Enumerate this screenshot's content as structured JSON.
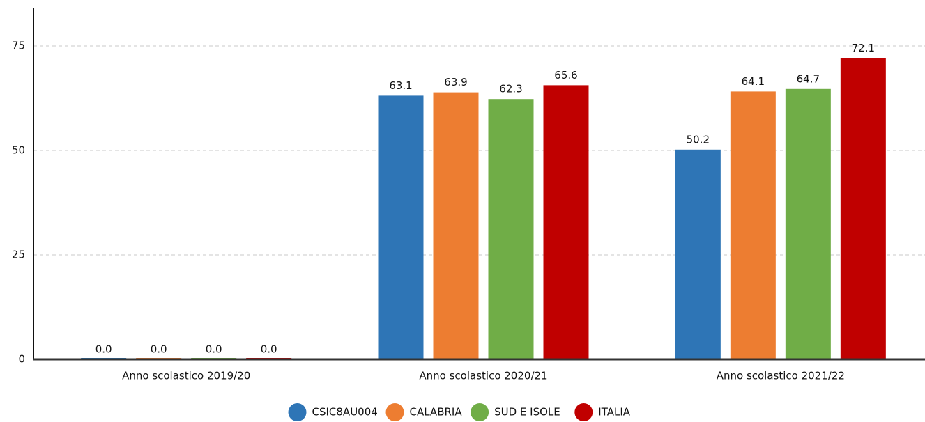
{
  "chart_data": {
    "type": "bar",
    "categories": [
      "Anno scolastico 2019/20",
      "Anno scolastico 2020/21",
      "Anno scolastico 2021/22"
    ],
    "series": [
      {
        "name": "CSIC8AU004",
        "color": "#2e75b6",
        "values": [
          0,
          63.1,
          50.2
        ],
        "value_labels": [
          "0.0",
          "63.1",
          "50.2"
        ]
      },
      {
        "name": "CALABRIA",
        "color": "#ed7d31",
        "values": [
          0,
          63.9,
          64.1
        ],
        "value_labels": [
          "0.0",
          "63.9",
          "64.1"
        ]
      },
      {
        "name": "SUD E ISOLE",
        "color": "#70ad47",
        "values": [
          0,
          62.3,
          64.7
        ],
        "value_labels": [
          "0.0",
          "62.3",
          "64.7"
        ]
      },
      {
        "name": "ITALIA",
        "color": "#c00000",
        "values": [
          0,
          65.6,
          72.1
        ],
        "value_labels": [
          "0.0",
          "65.6",
          "72.1"
        ]
      }
    ],
    "ylim": [
      0,
      84
    ],
    "yticks": [
      0,
      25,
      50,
      75
    ],
    "grid": true,
    "legend": "bottom"
  }
}
